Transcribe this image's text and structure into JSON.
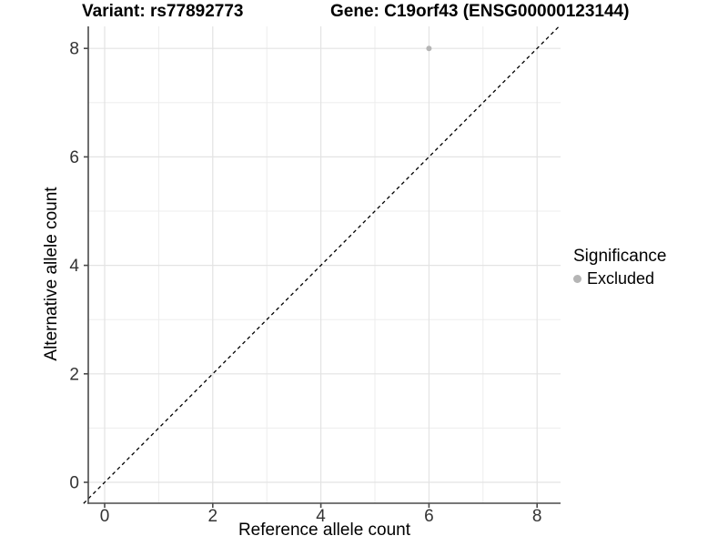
{
  "titles": {
    "variant": "Variant: rs77892773",
    "gene": "Gene: C19orf43 (ENSG00000123144)"
  },
  "chart_data": {
    "type": "scatter",
    "title_left": "Variant: rs77892773",
    "title_right": "Gene: C19orf43 (ENSG00000123144)",
    "xlabel": "Reference allele count",
    "ylabel": "Alternative allele count",
    "xlim": [
      -0.39,
      8.43
    ],
    "ylim": [
      -0.39,
      8.39
    ],
    "x_ticks": [
      0,
      2,
      4,
      6,
      8
    ],
    "y_ticks": [
      0,
      2,
      4,
      6,
      8
    ],
    "x_minor": [
      1,
      3,
      5,
      7
    ],
    "y_minor": [
      1,
      3,
      5,
      7
    ],
    "grid": true,
    "identity_line": {
      "equation": "y = x",
      "style": "dashed",
      "color": "#000000"
    },
    "series": [
      {
        "name": "Excluded",
        "color": "#b5b5b5",
        "points": [
          {
            "x": 6,
            "y": 8
          }
        ]
      }
    ],
    "legend": {
      "title": "Significance",
      "position": "right",
      "items": [
        {
          "label": "Excluded",
          "color": "#b5b5b5"
        }
      ]
    },
    "colors": {
      "grid_major": "#e3e3e3",
      "grid_minor": "#ededed",
      "axis_line": "#4a4a4a",
      "tick_text": "#333333"
    }
  }
}
